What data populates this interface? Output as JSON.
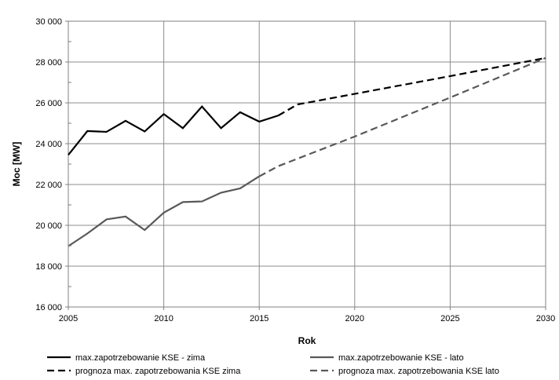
{
  "chart_data": {
    "type": "line",
    "title": "",
    "xlabel": "Rok",
    "ylabel": "Moc [MW]",
    "xlim": [
      2005,
      2030
    ],
    "ylim": [
      16000,
      30000
    ],
    "x_ticks": [
      2005,
      2010,
      2015,
      2020,
      2025,
      2030
    ],
    "y_ticks": [
      16000,
      18000,
      20000,
      22000,
      24000,
      26000,
      28000,
      30000
    ],
    "x_tick_labels": [
      "2005",
      "2010",
      "2015",
      "2020",
      "2025",
      "2030"
    ],
    "y_tick_labels": [
      "16 000",
      "18 000",
      "20 000",
      "22 000",
      "24 000",
      "26 000",
      "28 000",
      "30 000"
    ],
    "grid": true,
    "legend_position": "bottom",
    "series": [
      {
        "name": "max.zapotrzebowanie KSE - zima",
        "color": "#000000",
        "style": "solid",
        "x": [
          2005,
          2006,
          2007,
          2008,
          2009,
          2010,
          2011,
          2012,
          2013,
          2014,
          2015,
          2016
        ],
        "values": [
          23450,
          24620,
          24580,
          25120,
          24600,
          25450,
          24760,
          25820,
          24760,
          25540,
          25080,
          25380
        ]
      },
      {
        "name": "max.zapotrzebowanie KSE - lato",
        "color": "#595959",
        "style": "solid",
        "x": [
          2005,
          2006,
          2007,
          2008,
          2009,
          2010,
          2011,
          2012,
          2013,
          2014,
          2015
        ],
        "values": [
          18980,
          19600,
          20290,
          20430,
          19770,
          20620,
          21140,
          21170,
          21600,
          21810,
          22400
        ]
      },
      {
        "name": "prognoza max. zapotrzebowania KSE zima",
        "color": "#000000",
        "style": "dashed",
        "x": [
          2016,
          2017,
          2020,
          2025,
          2030
        ],
        "values": [
          25380,
          25920,
          26440,
          27310,
          28200
        ]
      },
      {
        "name": "prognoza max. zapotrzebowania KSE lato",
        "color": "#595959",
        "style": "dashed",
        "x": [
          2015,
          2016,
          2020,
          2025,
          2030
        ],
        "values": [
          22400,
          22900,
          24350,
          26260,
          28200
        ]
      }
    ]
  }
}
